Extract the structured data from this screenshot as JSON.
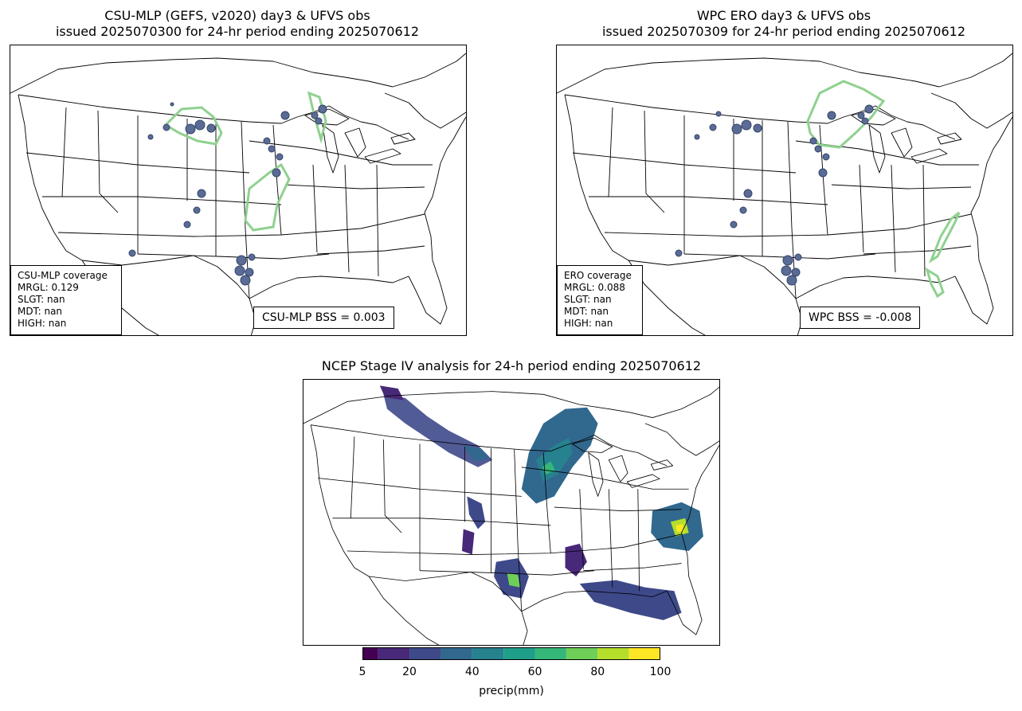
{
  "panels": {
    "csu": {
      "title_line1": "CSU-MLP (GEFS, v2020) day3 & UFVS obs",
      "title_line2": "issued 2025070300 for 24-hr period ending 2025070612",
      "coverage": {
        "heading": "CSU-MLP coverage",
        "mrgl": "MRGL: 0.129",
        "slgt": "SLGT: nan",
        "mdt": "MDT: nan",
        "high": "HIGH: nan"
      },
      "bss": "CSU-MLP BSS = 0.003"
    },
    "wpc": {
      "title_line1": "WPC ERO day3 & UFVS obs",
      "title_line2": "issued 2025070309 for 24-hr period ending 2025070612",
      "coverage": {
        "heading": "ERO coverage",
        "mrgl": "MRGL: 0.088",
        "slgt": "SLGT: nan",
        "mdt": "MDT: nan",
        "high": "HIGH: nan"
      },
      "bss": "WPC BSS = -0.008"
    },
    "stage4": {
      "title": "NCEP Stage IV analysis for 24-h period ending 2025070612"
    }
  },
  "colorbar": {
    "label": "precip(mm)",
    "tick_labels": [
      "5",
      "20",
      "40",
      "60",
      "80",
      "100"
    ],
    "levels": [
      5,
      10,
      20,
      30,
      40,
      50,
      60,
      70,
      80,
      90,
      100
    ],
    "colors": [
      "#440154",
      "#482878",
      "#3e4989",
      "#31688e",
      "#26828e",
      "#1f9e89",
      "#35b779",
      "#6ece58",
      "#b5de2b",
      "#fde725"
    ]
  },
  "colors": {
    "obs": "#5a6c95",
    "obs_edge": "#34446a",
    "mrgl_contour": "#8fd18f",
    "border": "#000000"
  }
}
